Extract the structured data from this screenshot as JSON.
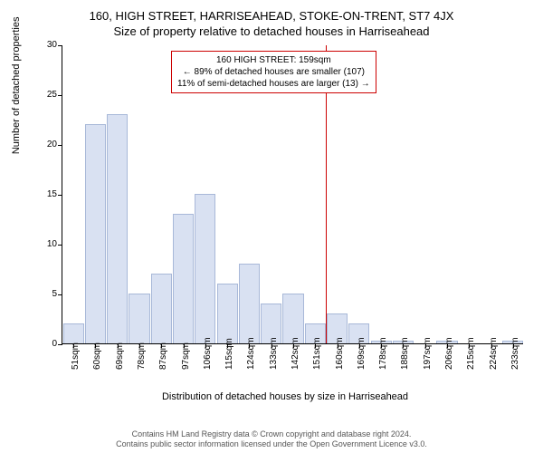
{
  "title": "160, HIGH STREET, HARRISEAHEAD, STOKE-ON-TRENT, ST7 4JX",
  "subtitle": "Size of property relative to detached houses in Harriseahead",
  "y_label": "Number of detached properties",
  "x_label": "Distribution of detached houses by size in Harriseahead",
  "footer_line1": "Contains HM Land Registry data © Crown copyright and database right 2024.",
  "footer_line2": "Contains public sector information licensed under the Open Government Licence v3.0.",
  "histogram": {
    "type": "histogram",
    "bar_color": "#d9e1f2",
    "bar_border": "#a8b8d8",
    "ylim": [
      0,
      30
    ],
    "y_ticks": [
      0,
      5,
      10,
      15,
      20,
      25,
      30
    ],
    "x_categories": [
      "51sqm",
      "60sqm",
      "69sqm",
      "78sqm",
      "87sqm",
      "97sqm",
      "106sqm",
      "115sqm",
      "124sqm",
      "133sqm",
      "142sqm",
      "151sqm",
      "160sqm",
      "169sqm",
      "178sqm",
      "188sqm",
      "197sqm",
      "206sqm",
      "215sqm",
      "224sqm",
      "233sqm"
    ],
    "values": [
      2,
      22,
      23,
      5,
      7,
      13,
      15,
      6,
      8,
      4,
      5,
      2,
      3,
      2,
      0.3,
      0.3,
      0,
      0.3,
      0,
      0,
      0.3
    ],
    "marker_color": "#cc0000",
    "marker_position_index": 12
  },
  "annotation": {
    "line1": "160 HIGH STREET: 159sqm",
    "line2": "← 89% of detached houses are smaller (107)",
    "line3": "11% of semi-detached houses are larger (13) →",
    "border_color": "#cc0000"
  },
  "colors": {
    "background": "#ffffff",
    "axis": "#000000",
    "text": "#000000",
    "footer_text": "#555555"
  },
  "fontsize": {
    "title": 13,
    "label": 11,
    "tick": 10,
    "annotation": 10,
    "footer": 9
  }
}
